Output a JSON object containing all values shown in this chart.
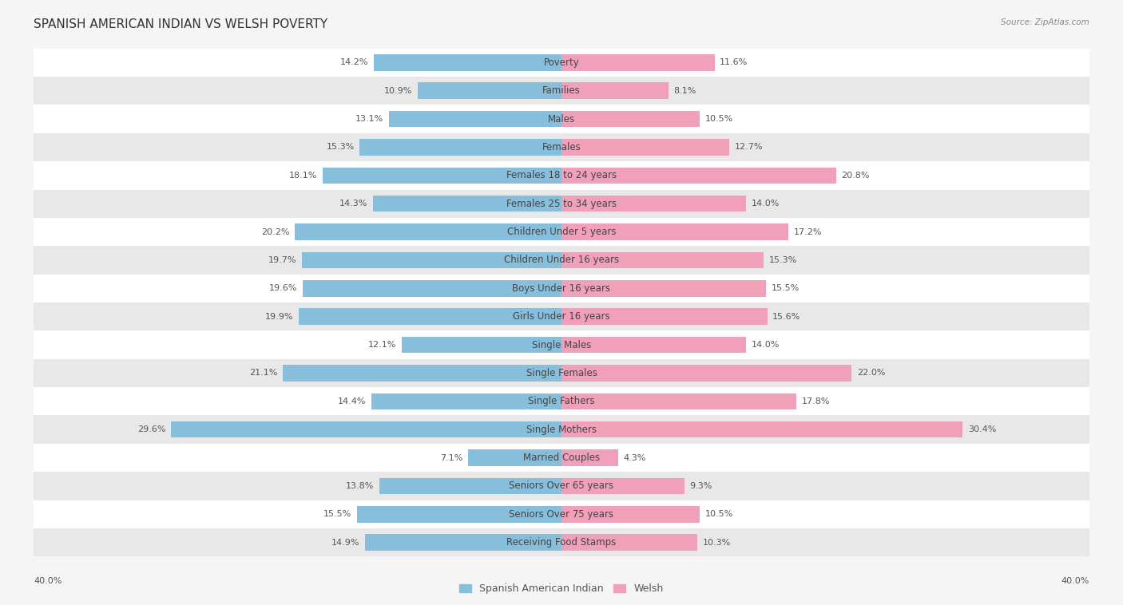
{
  "title": "SPANISH AMERICAN INDIAN VS WELSH POVERTY",
  "source": "Source: ZipAtlas.com",
  "categories": [
    "Poverty",
    "Families",
    "Males",
    "Females",
    "Females 18 to 24 years",
    "Females 25 to 34 years",
    "Children Under 5 years",
    "Children Under 16 years",
    "Boys Under 16 years",
    "Girls Under 16 years",
    "Single Males",
    "Single Females",
    "Single Fathers",
    "Single Mothers",
    "Married Couples",
    "Seniors Over 65 years",
    "Seniors Over 75 years",
    "Receiving Food Stamps"
  ],
  "left_values": [
    14.2,
    10.9,
    13.1,
    15.3,
    18.1,
    14.3,
    20.2,
    19.7,
    19.6,
    19.9,
    12.1,
    21.1,
    14.4,
    29.6,
    7.1,
    13.8,
    15.5,
    14.9
  ],
  "right_values": [
    11.6,
    8.1,
    10.5,
    12.7,
    20.8,
    14.0,
    17.2,
    15.3,
    15.5,
    15.6,
    14.0,
    22.0,
    17.8,
    30.4,
    4.3,
    9.3,
    10.5,
    10.3
  ],
  "left_color": "#87BEDC",
  "right_color": "#F0A0B8",
  "left_label": "Spanish American Indian",
  "right_label": "Welsh",
  "axis_max": 40.0,
  "background_color": "#f5f5f5",
  "row_bg_light": "#ffffff",
  "row_bg_dark": "#e8e8e8",
  "title_fontsize": 11,
  "label_fontsize": 8.5,
  "value_fontsize": 8.0
}
